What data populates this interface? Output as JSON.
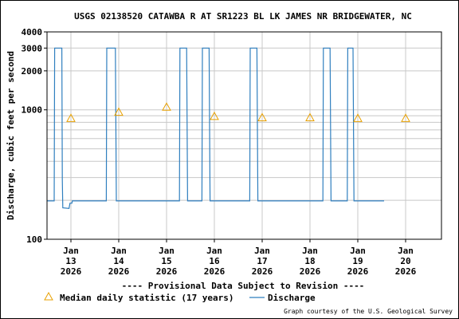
{
  "chart_data": {
    "type": "line",
    "title": "USGS 02138520 CATAWBA R AT SR1223 BL LK JAMES NR BRIDGEWATER, NC",
    "ylabel": "Discharge, cubic feet per second",
    "xlabel": "",
    "y_scale": "log",
    "ylim": [
      100,
      4000
    ],
    "y_ticks": [
      100,
      1000,
      2000,
      3000,
      4000
    ],
    "y_tick_labels": [
      "100",
      "1000",
      "2000",
      "3000",
      "4000"
    ],
    "y_gridlines": [
      200,
      300,
      400,
      500,
      600,
      700,
      800,
      900,
      1000,
      2000,
      3000
    ],
    "grid": true,
    "xlim_days": [
      12.5,
      20.75
    ],
    "x_ticks": [
      {
        "day": 13,
        "label": [
          "Jan",
          "13",
          "2026"
        ]
      },
      {
        "day": 14,
        "label": [
          "Jan",
          "14",
          "2026"
        ]
      },
      {
        "day": 15,
        "label": [
          "Jan",
          "15",
          "2026"
        ]
      },
      {
        "day": 16,
        "label": [
          "Jan",
          "16",
          "2026"
        ]
      },
      {
        "day": 17,
        "label": [
          "Jan",
          "17",
          "2026"
        ]
      },
      {
        "day": 18,
        "label": [
          "Jan",
          "18",
          "2026"
        ]
      },
      {
        "day": 19,
        "label": [
          "Jan",
          "19",
          "2026"
        ]
      },
      {
        "day": 20,
        "label": [
          "Jan",
          "20",
          "2026"
        ]
      }
    ],
    "series": [
      {
        "name": "Discharge",
        "color": "#2f7fbf",
        "points": [
          [
            12.5,
            198
          ],
          [
            12.65,
            198
          ],
          [
            12.66,
            3000
          ],
          [
            12.81,
            3000
          ],
          [
            12.82,
            290
          ],
          [
            12.83,
            175
          ],
          [
            12.96,
            173
          ],
          [
            12.98,
            190
          ],
          [
            13.02,
            190
          ],
          [
            13.03,
            198
          ],
          [
            13.74,
            198
          ],
          [
            13.75,
            3000
          ],
          [
            13.93,
            3000
          ],
          [
            13.95,
            198
          ],
          [
            15.27,
            198
          ],
          [
            15.28,
            3000
          ],
          [
            15.42,
            3000
          ],
          [
            15.44,
            198
          ],
          [
            15.74,
            198
          ],
          [
            15.75,
            3000
          ],
          [
            15.89,
            3000
          ],
          [
            15.91,
            198
          ],
          [
            16.74,
            198
          ],
          [
            16.75,
            3000
          ],
          [
            16.89,
            3000
          ],
          [
            16.91,
            198
          ],
          [
            18.27,
            198
          ],
          [
            18.28,
            3000
          ],
          [
            18.42,
            3000
          ],
          [
            18.44,
            198
          ],
          [
            18.78,
            198
          ],
          [
            18.79,
            3000
          ],
          [
            18.9,
            3000
          ],
          [
            18.92,
            198
          ],
          [
            19.55,
            198
          ]
        ]
      }
    ],
    "median_daily_statistic": {
      "name": "Median daily statistic (17 years)",
      "color": "#e8a000",
      "points": [
        [
          13.0,
          860
        ],
        [
          14.0,
          960
        ],
        [
          15.0,
          1050
        ],
        [
          16.0,
          890
        ],
        [
          17.0,
          870
        ],
        [
          18.0,
          870
        ],
        [
          19.0,
          860
        ],
        [
          20.0,
          860
        ]
      ]
    }
  },
  "legend": {
    "median_label": "Median daily statistic (17 years)",
    "discharge_label": "Discharge"
  },
  "provisional_notice": "---- Provisional Data Subject to Revision ----",
  "credit": "Graph courtesy of the U.S. Geological Survey",
  "colors": {
    "discharge": "#2f7fbf",
    "median": "#e8a000",
    "notice": "#cc0000",
    "grid": "#c8c8c8"
  }
}
